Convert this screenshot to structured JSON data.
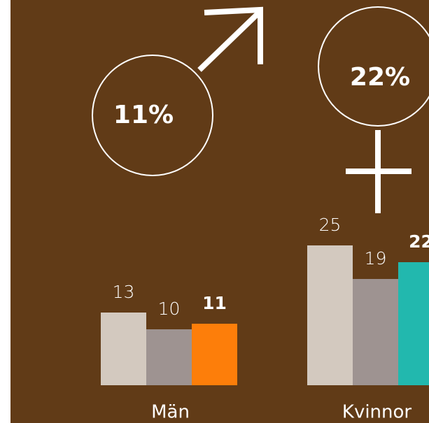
{
  "chart_data": {
    "type": "bar",
    "categories": [
      "Män",
      "Kvinnor"
    ],
    "symbols": [
      {
        "label": "11%"
      },
      {
        "label": "22%"
      }
    ],
    "series": [
      {
        "color": "#d3c9bf",
        "values": [
          13,
          25
        ]
      },
      {
        "color": "#9e9391",
        "values": [
          10,
          19
        ]
      },
      {
        "colors": [
          "#fd7e0a",
          "#22b8ae"
        ],
        "values": [
          11,
          22
        ],
        "bold": true
      }
    ]
  }
}
